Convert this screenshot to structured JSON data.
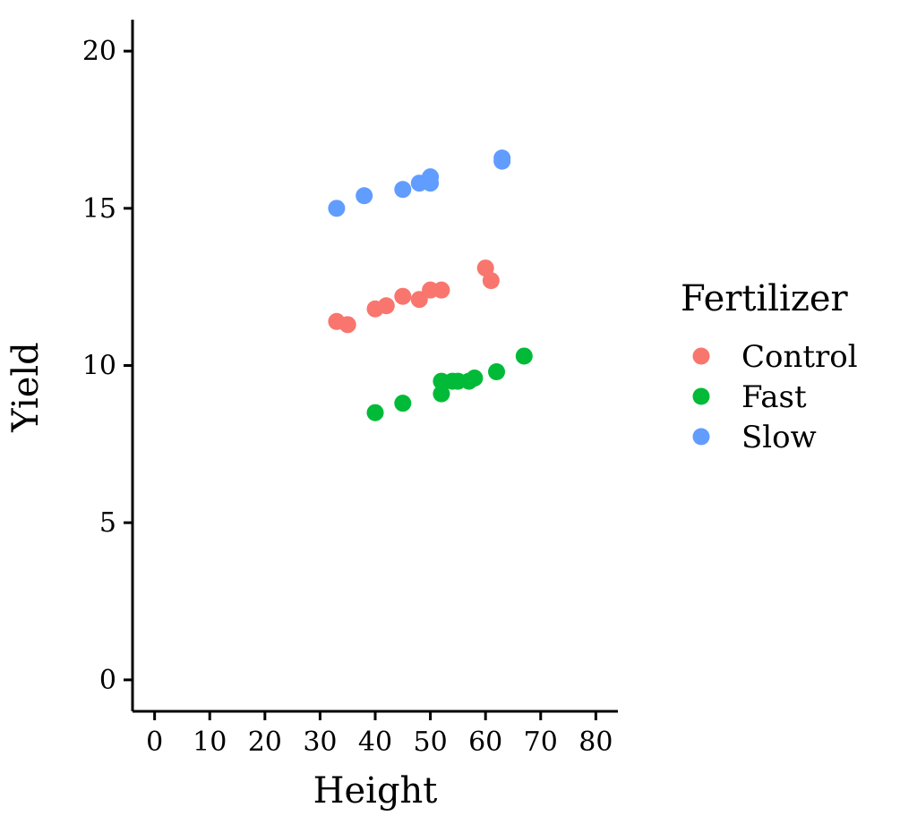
{
  "chart_data": {
    "type": "scatter",
    "xlabel": "Height",
    "ylabel": "Yield",
    "xlim": [
      -4,
      84
    ],
    "ylim": [
      -1,
      21
    ],
    "xticks": [
      0,
      10,
      20,
      30,
      40,
      50,
      60,
      70,
      80
    ],
    "yticks": [
      0,
      5,
      10,
      15,
      20
    ],
    "grid": false,
    "legend": {
      "title": "Fertilizer",
      "placement": "right"
    },
    "series": [
      {
        "name": "Control",
        "color": "#F8766D",
        "points": [
          [
            33,
            11.4
          ],
          [
            35,
            11.3
          ],
          [
            40,
            11.8
          ],
          [
            42,
            11.9
          ],
          [
            45,
            12.2
          ],
          [
            48,
            12.1
          ],
          [
            50,
            12.4
          ],
          [
            52,
            12.4
          ],
          [
            60,
            13.1
          ],
          [
            61,
            12.7
          ]
        ]
      },
      {
        "name": "Fast",
        "color": "#00BA38",
        "points": [
          [
            40,
            8.5
          ],
          [
            45,
            8.8
          ],
          [
            52,
            9.1
          ],
          [
            52,
            9.5
          ],
          [
            54,
            9.5
          ],
          [
            55,
            9.5
          ],
          [
            57,
            9.5
          ],
          [
            58,
            9.6
          ],
          [
            62,
            9.8
          ],
          [
            67,
            10.3
          ]
        ]
      },
      {
        "name": "Slow",
        "color": "#619CFF",
        "points": [
          [
            33,
            15.0
          ],
          [
            38,
            15.4
          ],
          [
            45,
            15.6
          ],
          [
            48,
            15.8
          ],
          [
            50,
            15.8
          ],
          [
            50,
            16.0
          ],
          [
            63,
            16.5
          ],
          [
            63,
            16.6
          ]
        ]
      }
    ]
  }
}
